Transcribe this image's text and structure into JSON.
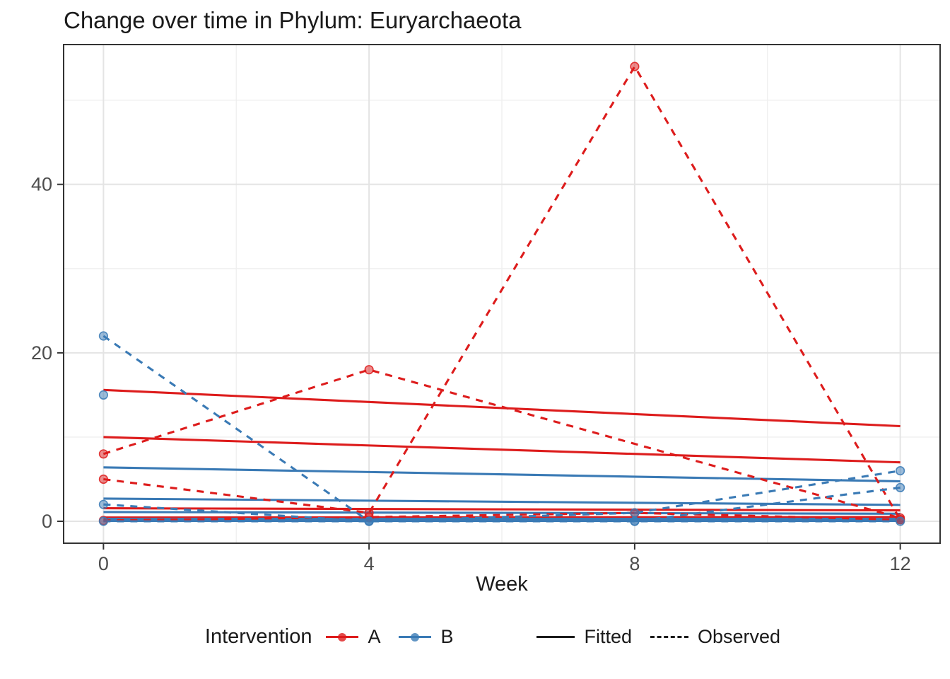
{
  "title": "Change over time in Phylum: Euryarchaeota",
  "x_axis_label": "Week",
  "legend": {
    "title": "Intervention",
    "groups": [
      {
        "label": "A",
        "color": "#DD1C1C"
      },
      {
        "label": "B",
        "color": "#3A7AB5"
      }
    ],
    "linetypes": [
      {
        "label": "Fitted",
        "style": "solid"
      },
      {
        "label": "Observed",
        "style": "dashed"
      }
    ]
  },
  "colors": {
    "grid_major": "#e4e4e4",
    "grid_minor": "#efefef",
    "panel_border": "#333333",
    "tick_mark": "#333333",
    "tick_label": "#4d4d4d",
    "text": "#1a1a1a"
  },
  "chart_data": {
    "type": "line",
    "title": "Change over time in Phylum: Euryarchaeota",
    "xlabel": "Week",
    "ylabel": "",
    "x_ticks": [
      0,
      4,
      8,
      12
    ],
    "y_ticks": [
      0,
      20,
      40
    ],
    "x_minor_ticks": [
      2,
      6,
      10
    ],
    "y_minor_ticks": [
      10,
      30,
      50
    ],
    "xlim": [
      -0.6,
      12.6
    ],
    "ylim": [
      -2.6,
      56.6
    ],
    "grid": true,
    "legend_position": "bottom",
    "groups": [
      {
        "name": "A",
        "color": "#DD1C1C"
      },
      {
        "name": "B",
        "color": "#3A7AB5"
      }
    ],
    "series": [
      {
        "name": "A-fitted-1",
        "group": "A",
        "linetype": "Fitted",
        "x": [
          0,
          12
        ],
        "y": [
          15.6,
          11.3
        ]
      },
      {
        "name": "A-fitted-2",
        "group": "A",
        "linetype": "Fitted",
        "x": [
          0,
          12
        ],
        "y": [
          10.0,
          7.0
        ]
      },
      {
        "name": "A-fitted-3",
        "group": "A",
        "linetype": "Fitted",
        "x": [
          0,
          12
        ],
        "y": [
          1.55,
          1.3
        ]
      },
      {
        "name": "A-fitted-4",
        "group": "A",
        "linetype": "Fitted",
        "x": [
          0,
          12
        ],
        "y": [
          0.45,
          0.5
        ]
      },
      {
        "name": "A-fitted-5",
        "group": "A",
        "linetype": "Fitted",
        "x": [
          0,
          12
        ],
        "y": [
          0.08,
          0.08
        ]
      },
      {
        "name": "B-fitted-1",
        "group": "B",
        "linetype": "Fitted",
        "x": [
          0,
          12
        ],
        "y": [
          6.4,
          4.75
        ]
      },
      {
        "name": "B-fitted-2",
        "group": "B",
        "linetype": "Fitted",
        "x": [
          0,
          12
        ],
        "y": [
          2.7,
          1.95
        ]
      },
      {
        "name": "B-fitted-3",
        "group": "B",
        "linetype": "Fitted",
        "x": [
          0,
          12
        ],
        "y": [
          1.1,
          0.9
        ]
      },
      {
        "name": "B-fitted-4",
        "group": "B",
        "linetype": "Fitted",
        "x": [
          0,
          12
        ],
        "y": [
          0.3,
          0.3
        ]
      },
      {
        "name": "B-fitted-5",
        "group": "B",
        "linetype": "Fitted",
        "x": [
          0,
          12
        ],
        "y": [
          0.05,
          0.05
        ]
      },
      {
        "name": "A-observed-1",
        "group": "A",
        "linetype": "Observed",
        "points": true,
        "x": [
          0,
          4,
          12
        ],
        "y": [
          8,
          18,
          0.4
        ]
      },
      {
        "name": "A-observed-2",
        "group": "A",
        "linetype": "Observed",
        "points": true,
        "x": [
          0,
          4,
          8,
          12
        ],
        "y": [
          5,
          1,
          54,
          0.2
        ]
      },
      {
        "name": "A-observed-3",
        "group": "A",
        "linetype": "Observed",
        "points": true,
        "x": [
          0,
          4,
          8,
          12
        ],
        "y": [
          0.1,
          0.5,
          1,
          0.2
        ]
      },
      {
        "name": "B-observed-1",
        "group": "B",
        "linetype": "Observed",
        "points": true,
        "x": [
          0,
          4,
          8,
          12
        ],
        "y": [
          22,
          0,
          1,
          6
        ]
      },
      {
        "name": "B-observed-2",
        "group": "B",
        "linetype": "Observed",
        "points": true,
        "x": [
          0,
          4,
          8,
          12
        ],
        "y": [
          2,
          0,
          0,
          4
        ]
      },
      {
        "name": "B-observed-3",
        "group": "B",
        "linetype": "Observed",
        "points": true,
        "x": [
          0,
          4,
          8,
          12
        ],
        "y": [
          0,
          0,
          0,
          0
        ]
      },
      {
        "name": "B-observed-4",
        "group": "B",
        "linetype": "Observed",
        "points": true,
        "x": [
          0
        ],
        "y": [
          15
        ]
      }
    ]
  }
}
